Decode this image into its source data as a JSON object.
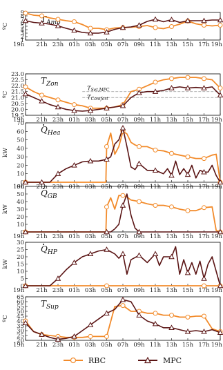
{
  "colors": {
    "rbc": "#f28b2b",
    "mpc": "#5a1414",
    "comfort": "#999999"
  },
  "x_ticks": [
    "19h",
    "21h",
    "23h",
    "01h",
    "03h",
    "05h",
    "07h",
    "09h",
    "11h",
    "13h",
    "15h",
    "17h",
    "19h"
  ],
  "legend": [
    {
      "name": "RBC",
      "marker": "circle"
    },
    {
      "name": "MPC",
      "marker": "triangle"
    }
  ],
  "chart_data": [
    {
      "type": "line",
      "title": "T",
      "title_sub": "Amb",
      "ylabel": "ºC",
      "ylim": [
        1,
        9
      ],
      "yticks": [
        1,
        2,
        3,
        4,
        5,
        6,
        7,
        8,
        9
      ],
      "x": [
        0,
        1,
        2,
        3,
        4,
        5,
        6,
        7,
        8,
        9,
        10,
        11,
        12,
        13,
        14,
        15,
        16,
        17,
        18,
        19,
        20,
        21,
        22,
        23,
        24
      ],
      "series": [
        {
          "name": "RBC",
          "values": [
            8.8,
            8.2,
            8.0,
            7.4,
            7.0,
            6.6,
            6.3,
            5.5,
            4.4,
            4.4,
            4.0,
            4.5,
            4.6,
            4.7,
            4.9,
            5.2,
            4.6,
            4.3,
            4.9,
            5.6,
            6.5,
            5.7,
            5.3,
            5.1,
            5.3
          ]
        },
        {
          "name": "MPC",
          "values": [
            6.6,
            6.1,
            5.9,
            5.6,
            5.1,
            4.4,
            3.8,
            3.2,
            3.0,
            3.0,
            3.3,
            4.1,
            4.6,
            4.8,
            5.3,
            6.4,
            7.0,
            6.3,
            6.9,
            6.1,
            6.6,
            6.6,
            6.6,
            6.8,
            6.8
          ]
        }
      ]
    },
    {
      "type": "line",
      "title": "T",
      "title_sub": "Zon",
      "ylabel": "ºC",
      "ylim": [
        19.5,
        23
      ],
      "yticks": [
        19.5,
        20.0,
        20.5,
        21.0,
        21.5,
        22.0,
        22.5,
        23.0
      ],
      "annotations": [
        {
          "text": "T",
          "sub": "Set,MPC"
        },
        {
          "text": "T",
          "sub": "Comfort"
        }
      ],
      "reference_lines": [
        {
          "name": "set_mpc",
          "x_start": 7.0,
          "x_end": 24,
          "y": 21.5
        },
        {
          "name": "comfort",
          "x_start": 7.0,
          "x_end": 24,
          "y": 21.0
        }
      ],
      "x": [
        0,
        1,
        2,
        3,
        4,
        5,
        6,
        7,
        8,
        9,
        10,
        11,
        12,
        13,
        14,
        15,
        16,
        17,
        18,
        19,
        20,
        21,
        22,
        23,
        24
      ],
      "series": [
        {
          "name": "RBC",
          "values": [
            21.9,
            21.5,
            21.2,
            21.0,
            20.8,
            20.6,
            20.4,
            20.3,
            20.1,
            20.1,
            20.1,
            20.2,
            20.4,
            21.5,
            21.7,
            22.0,
            22.3,
            22.5,
            22.6,
            22.7,
            22.7,
            22.7,
            22.6,
            22.5,
            21.8
          ]
        },
        {
          "name": "MPC",
          "values": [
            21.3,
            21.0,
            20.7,
            20.4,
            20.2,
            20.0,
            19.9,
            19.85,
            19.9,
            20.0,
            20.1,
            20.2,
            20.3,
            21.0,
            21.4,
            21.5,
            21.5,
            21.6,
            21.8,
            21.9,
            21.8,
            21.85,
            21.8,
            21.9,
            21.2
          ]
        }
      ]
    },
    {
      "type": "line",
      "title": "Q",
      "title_sub": "Hea",
      "ylabel": "kW",
      "ylim": [
        0,
        70
      ],
      "yticks": [
        0,
        10,
        20,
        30,
        40,
        50,
        60,
        70
      ],
      "x_rbc": [
        0,
        5,
        9.9,
        10,
        10.5,
        11,
        11.5,
        12,
        12.5,
        13,
        13.5,
        14,
        15,
        16,
        17,
        18,
        19,
        20,
        21,
        22,
        23,
        23.5,
        24
      ],
      "x_mpc": [
        0,
        2,
        3,
        4,
        5,
        6,
        7,
        8,
        9,
        10,
        10.5,
        11,
        11.5,
        12,
        12.5,
        13,
        13.5,
        14,
        15,
        16,
        17,
        17.5,
        18,
        18.5,
        19,
        19.5,
        20,
        20.5,
        21,
        21.5,
        22,
        22.5,
        23,
        23.5,
        24
      ],
      "series": [
        {
          "name": "RBC",
          "values": [
            0,
            0,
            0,
            42,
            58,
            33,
            42,
            60,
            57,
            47,
            44,
            42,
            42,
            38,
            37,
            34,
            32,
            30,
            28,
            28,
            32,
            33,
            0
          ]
        },
        {
          "name": "MPC",
          "values": [
            0,
            0,
            0,
            10,
            16,
            20,
            24,
            25,
            25,
            27,
            30,
            45,
            50,
            64,
            42,
            18,
            15,
            22,
            14,
            14,
            10,
            16,
            8,
            25,
            9,
            16,
            9,
            20,
            5,
            14,
            12,
            12,
            20,
            8,
            0
          ]
        }
      ]
    },
    {
      "type": "line",
      "title": "Q",
      "title_sub": "GB",
      "ylabel": "kW",
      "ylim": [
        0,
        60
      ],
      "yticks": [
        0,
        10,
        20,
        30,
        40,
        50,
        60
      ],
      "x_rbc": [
        0,
        5,
        9.9,
        10,
        10.5,
        11,
        11.5,
        12,
        12.5,
        13,
        14,
        15,
        16,
        17,
        18,
        19,
        20,
        21,
        22,
        23,
        23.5,
        24
      ],
      "x_mpc": [
        0,
        10,
        10.5,
        11,
        11.5,
        12,
        12.5,
        13,
        13.5,
        14,
        24
      ],
      "series": [
        {
          "name": "RBC",
          "values": [
            0,
            0,
            0,
            33,
            45,
            30,
            48,
            48,
            46,
            42,
            40,
            37,
            35,
            35,
            33,
            30,
            28,
            28,
            32,
            33,
            2,
            0
          ]
        },
        {
          "name": "MPC",
          "values": [
            0,
            0,
            0,
            4,
            10,
            35,
            50,
            22,
            5,
            0,
            0
          ]
        }
      ]
    },
    {
      "type": "line",
      "title": "Q",
      "title_sub": "HP",
      "ylabel": "kW",
      "ylim": [
        0,
        30
      ],
      "yticks": [
        0,
        5,
        10,
        15,
        20,
        25,
        30
      ],
      "x_rbc": [
        0,
        5,
        10,
        15,
        17,
        19,
        21,
        22,
        24
      ],
      "x_mpc": [
        0,
        3,
        4,
        5,
        6,
        7,
        8,
        9,
        10,
        11,
        11.5,
        12,
        12.5,
        13,
        14,
        15,
        16,
        16.5,
        17,
        18,
        18.5,
        19,
        19.5,
        20,
        20.5,
        21,
        21.5,
        22,
        22.5,
        23,
        23.5,
        24
      ],
      "series": [
        {
          "name": "RBC",
          "values": [
            0,
            0,
            0,
            0,
            0,
            0,
            0,
            0,
            0
          ]
        },
        {
          "name": "MPC",
          "values": [
            0,
            0,
            5,
            11,
            16,
            20,
            22,
            24,
            25,
            22,
            19,
            22,
            8,
            18,
            21,
            16,
            22,
            14,
            20,
            20,
            27,
            8,
            18,
            9,
            16,
            8,
            17,
            5,
            15,
            20,
            10,
            0
          ]
        }
      ]
    },
    {
      "type": "line",
      "title": "T",
      "title_sub": "Sup",
      "ylabel": "ºC",
      "ylim": [
        20,
        65
      ],
      "yticks": [
        20,
        25,
        30,
        35,
        40,
        45,
        50,
        55,
        60,
        65
      ],
      "x": [
        0,
        1,
        2,
        3,
        4,
        5,
        6,
        7,
        8,
        9,
        10,
        11,
        12,
        13,
        14,
        15,
        16,
        17,
        18,
        19,
        20,
        21,
        22,
        23,
        24
      ],
      "series": [
        {
          "name": "RBC",
          "values": [
            40,
            29,
            26,
            25,
            24,
            23,
            23,
            23,
            24,
            24,
            24,
            55,
            56,
            50,
            50,
            48,
            48,
            46,
            46,
            44,
            44,
            45,
            45,
            32,
            29
          ]
        },
        {
          "name": "MPC",
          "values": [
            38,
            29,
            26,
            23,
            21,
            22,
            24,
            30,
            36,
            42,
            48,
            52,
            62,
            60,
            46,
            40,
            37,
            33,
            33,
            31,
            29,
            30,
            29,
            31,
            28
          ]
        }
      ]
    }
  ]
}
